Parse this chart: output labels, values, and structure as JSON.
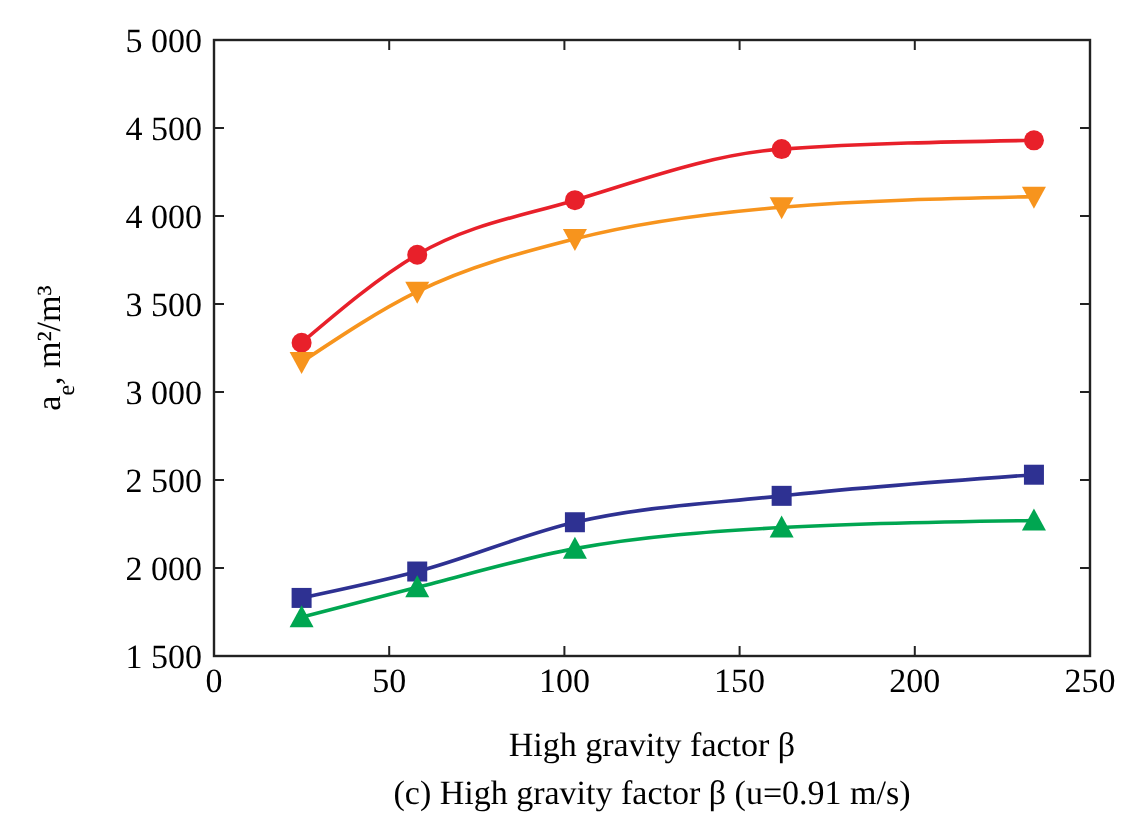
{
  "chart_data": {
    "type": "line",
    "title": "(c) High gravity factor β (u=0.91 m/s)",
    "xlabel": "High gravity factor β",
    "ylabel": "a$_{e}$, m²/m³",
    "x": [
      25,
      58,
      103,
      162,
      234
    ],
    "series": [
      {
        "color": "#e8202a",
        "marker": "circle",
        "values": [
          3280,
          3780,
          4090,
          4380,
          4430
        ]
      },
      {
        "color": "#f7941d",
        "marker": "triangle-down",
        "values": [
          3170,
          3570,
          3870,
          4050,
          4110
        ]
      },
      {
        "color": "#2e3192",
        "marker": "square",
        "values": [
          1830,
          1980,
          2260,
          2410,
          2530
        ]
      },
      {
        "color": "#00a651",
        "marker": "triangle",
        "values": [
          1720,
          1890,
          2110,
          2230,
          2270
        ]
      }
    ],
    "xlim": [
      0,
      250
    ],
    "xticks": [
      0,
      50,
      100,
      150,
      200,
      250
    ],
    "ylim": [
      1500,
      5000
    ],
    "yticks": [
      {
        "value": 1500,
        "label": "1 500"
      },
      {
        "value": 2000,
        "label": "2 000"
      },
      {
        "value": 2500,
        "label": "2 500"
      },
      {
        "value": 3000,
        "label": "3 000"
      },
      {
        "value": 3500,
        "label": "3 500"
      },
      {
        "value": 4000,
        "label": "4 000"
      },
      {
        "value": 4500,
        "label": "4 500"
      },
      {
        "value": 5000,
        "label": "5 000"
      }
    ],
    "grid": false,
    "line_style": "solid"
  }
}
